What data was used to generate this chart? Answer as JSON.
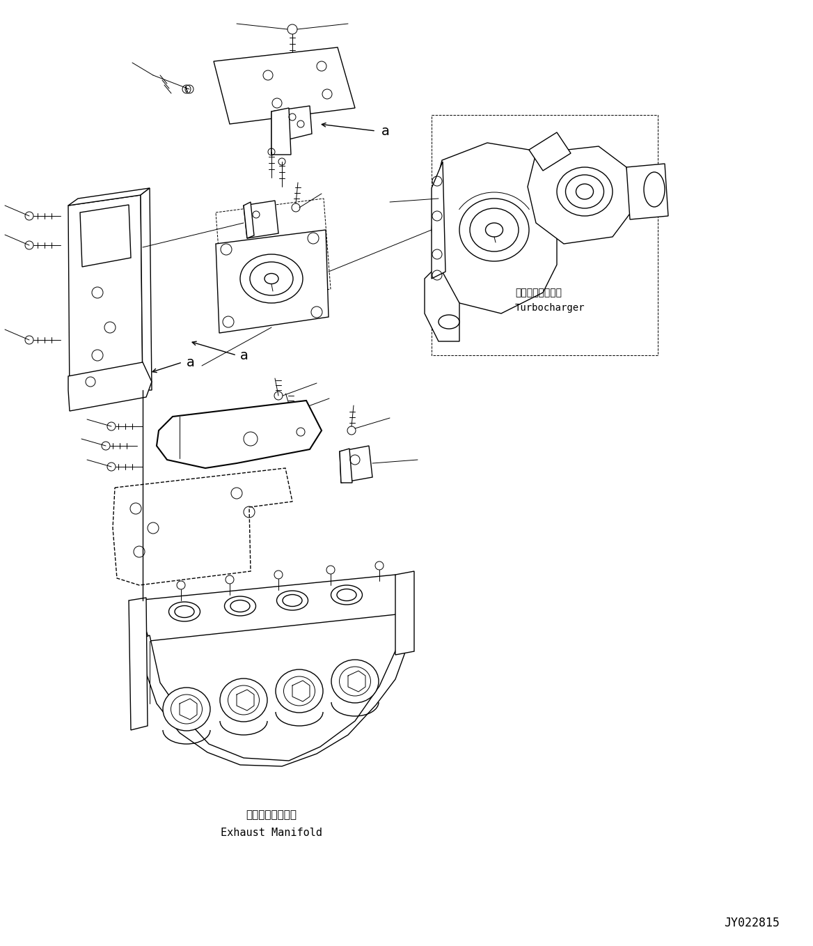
{
  "fig_width": 11.68,
  "fig_height": 13.58,
  "bg_color": "#ffffff",
  "line_color": "#000000",
  "label_turbocharger_jp": "ターボチャージャ",
  "label_turbocharger_en": "Turbocharger",
  "label_exhaust_jp": "排気マニホールド",
  "label_exhaust_en": "Exhaust Manifold",
  "label_drawing_id": "JY022815",
  "label_a": "a",
  "font_size_labels": 10,
  "font_size_id": 12
}
